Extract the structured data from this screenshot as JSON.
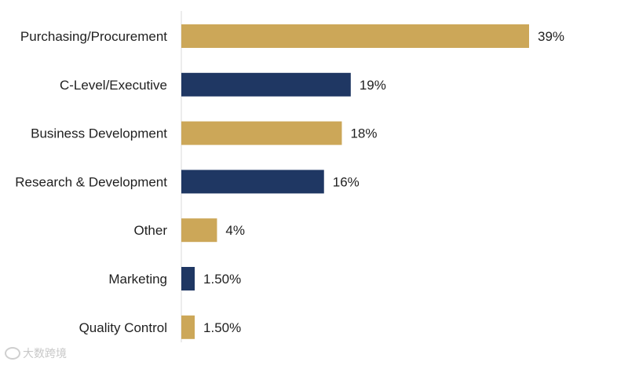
{
  "chart_data": {
    "type": "bar",
    "orientation": "horizontal",
    "categories": [
      "Purchasing/Procurement",
      "C-Level/Executive",
      "Business Development",
      "Research & Development",
      "Other",
      "Marketing",
      "Quality Control"
    ],
    "values": [
      39,
      19,
      18,
      16,
      4,
      1.5,
      1.5
    ],
    "data_labels": [
      "39%",
      "19%",
      "18%",
      "16%",
      "4%",
      "1.50%",
      "1.50%"
    ],
    "bar_colors": [
      "#CCA758",
      "#1F3763",
      "#CCA758",
      "#1F3763",
      "#CCA758",
      "#1F3763",
      "#CCA758"
    ],
    "xlim": [
      0,
      39
    ],
    "grid": false,
    "legend": "none",
    "title": "",
    "xlabel": "",
    "ylabel": ""
  },
  "watermark": {
    "text": "大数跨境"
  }
}
